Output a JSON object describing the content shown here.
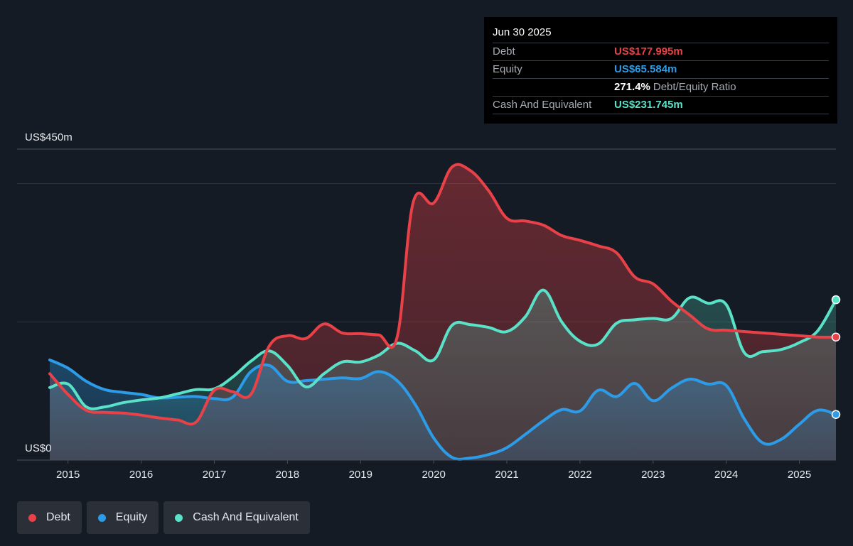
{
  "tooltip": {
    "date": "Jun 30 2025",
    "rows": [
      {
        "label": "Debt",
        "value": "US$177.995m",
        "color": "#e84148"
      },
      {
        "label": "Equity",
        "value": "US$65.584m",
        "color": "#2d9ce8"
      },
      {
        "label": "",
        "value": "271.4%",
        "suffix": "Debt/Equity Ratio",
        "color": "#ffffff"
      },
      {
        "label": "Cash And Equivalent",
        "value": "US$231.745m",
        "color": "#5ae2c8"
      }
    ]
  },
  "legend": [
    {
      "label": "Debt",
      "color": "#e84148"
    },
    {
      "label": "Equity",
      "color": "#2d9ce8"
    },
    {
      "label": "Cash And Equivalent",
      "color": "#5ae2c8"
    }
  ],
  "chart_data": {
    "type": "area",
    "ylabel_top": "US$450m",
    "ylabel_bottom": "US$0",
    "ylim": [
      0,
      450
    ],
    "xlim": [
      2014.75,
      2025.5
    ],
    "x_ticks": [
      "2015",
      "2016",
      "2017",
      "2018",
      "2019",
      "2020",
      "2021",
      "2022",
      "2023",
      "2024",
      "2025"
    ],
    "grid": true,
    "legend_position": "bottom-left",
    "series": [
      {
        "name": "Debt",
        "color": "#e84148",
        "points": [
          [
            2014.75,
            125
          ],
          [
            2015.0,
            95
          ],
          [
            2015.25,
            72
          ],
          [
            2015.5,
            69
          ],
          [
            2015.75,
            68
          ],
          [
            2016.0,
            65
          ],
          [
            2016.25,
            61
          ],
          [
            2016.5,
            58
          ],
          [
            2016.75,
            55
          ],
          [
            2017.0,
            101
          ],
          [
            2017.25,
            99
          ],
          [
            2017.5,
            95
          ],
          [
            2017.75,
            165
          ],
          [
            2018.0,
            180
          ],
          [
            2018.25,
            176
          ],
          [
            2018.5,
            197
          ],
          [
            2018.75,
            184
          ],
          [
            2019.0,
            183
          ],
          [
            2019.25,
            181
          ],
          [
            2019.5,
            178
          ],
          [
            2019.72,
            373
          ],
          [
            2020.0,
            372
          ],
          [
            2020.25,
            424
          ],
          [
            2020.5,
            419
          ],
          [
            2020.75,
            390
          ],
          [
            2021.0,
            350
          ],
          [
            2021.25,
            346
          ],
          [
            2021.5,
            340
          ],
          [
            2021.75,
            325
          ],
          [
            2022.0,
            318
          ],
          [
            2022.25,
            310
          ],
          [
            2022.5,
            300
          ],
          [
            2022.75,
            265
          ],
          [
            2023.0,
            255
          ],
          [
            2023.25,
            230
          ],
          [
            2023.5,
            210
          ],
          [
            2023.75,
            190
          ],
          [
            2024.0,
            188
          ],
          [
            2024.25,
            186
          ],
          [
            2024.5,
            184
          ],
          [
            2024.75,
            182
          ],
          [
            2025.0,
            180
          ],
          [
            2025.25,
            178
          ],
          [
            2025.5,
            178
          ]
        ]
      },
      {
        "name": "Equity",
        "color": "#2d9ce8",
        "points": [
          [
            2014.75,
            145
          ],
          [
            2015.0,
            133
          ],
          [
            2015.25,
            114
          ],
          [
            2015.5,
            102
          ],
          [
            2015.75,
            98
          ],
          [
            2016.0,
            95
          ],
          [
            2016.25,
            90
          ],
          [
            2016.5,
            91
          ],
          [
            2016.75,
            92
          ],
          [
            2017.0,
            89
          ],
          [
            2017.25,
            91
          ],
          [
            2017.5,
            128
          ],
          [
            2017.75,
            137
          ],
          [
            2018.0,
            114
          ],
          [
            2018.25,
            115
          ],
          [
            2018.5,
            117
          ],
          [
            2018.75,
            119
          ],
          [
            2019.0,
            118
          ],
          [
            2019.25,
            128
          ],
          [
            2019.5,
            115
          ],
          [
            2019.75,
            80
          ],
          [
            2020.0,
            32
          ],
          [
            2020.25,
            4
          ],
          [
            2020.5,
            3
          ],
          [
            2020.75,
            8
          ],
          [
            2021.0,
            18
          ],
          [
            2021.25,
            37
          ],
          [
            2021.5,
            57
          ],
          [
            2021.75,
            73
          ],
          [
            2022.0,
            71
          ],
          [
            2022.25,
            101
          ],
          [
            2022.5,
            92
          ],
          [
            2022.75,
            111
          ],
          [
            2023.0,
            86
          ],
          [
            2023.25,
            104
          ],
          [
            2023.5,
            117
          ],
          [
            2023.75,
            110
          ],
          [
            2024.0,
            108
          ],
          [
            2024.25,
            59
          ],
          [
            2024.5,
            25
          ],
          [
            2024.75,
            30
          ],
          [
            2025.0,
            52
          ],
          [
            2025.25,
            72
          ],
          [
            2025.5,
            66
          ]
        ]
      },
      {
        "name": "Cash And Equivalent",
        "color": "#5ae2c8",
        "points": [
          [
            2014.75,
            105
          ],
          [
            2015.0,
            110
          ],
          [
            2015.25,
            77
          ],
          [
            2015.5,
            77
          ],
          [
            2015.75,
            83
          ],
          [
            2016.0,
            87
          ],
          [
            2016.25,
            90
          ],
          [
            2016.5,
            96
          ],
          [
            2016.75,
            102
          ],
          [
            2017.0,
            103
          ],
          [
            2017.25,
            120
          ],
          [
            2017.5,
            143
          ],
          [
            2017.75,
            158
          ],
          [
            2018.0,
            137
          ],
          [
            2018.25,
            106
          ],
          [
            2018.5,
            125
          ],
          [
            2018.75,
            142
          ],
          [
            2019.0,
            142
          ],
          [
            2019.25,
            152
          ],
          [
            2019.5,
            169
          ],
          [
            2019.75,
            158
          ],
          [
            2020.0,
            145
          ],
          [
            2020.25,
            195
          ],
          [
            2020.5,
            196
          ],
          [
            2020.75,
            192
          ],
          [
            2021.0,
            186
          ],
          [
            2021.25,
            207
          ],
          [
            2021.5,
            246
          ],
          [
            2021.75,
            200
          ],
          [
            2022.0,
            172
          ],
          [
            2022.25,
            168
          ],
          [
            2022.5,
            198
          ],
          [
            2022.75,
            203
          ],
          [
            2023.0,
            205
          ],
          [
            2023.25,
            205
          ],
          [
            2023.5,
            235
          ],
          [
            2023.75,
            227
          ],
          [
            2024.0,
            225
          ],
          [
            2024.25,
            155
          ],
          [
            2024.5,
            157
          ],
          [
            2024.75,
            160
          ],
          [
            2025.0,
            170
          ],
          [
            2025.25,
            187
          ],
          [
            2025.5,
            232
          ]
        ]
      }
    ]
  }
}
